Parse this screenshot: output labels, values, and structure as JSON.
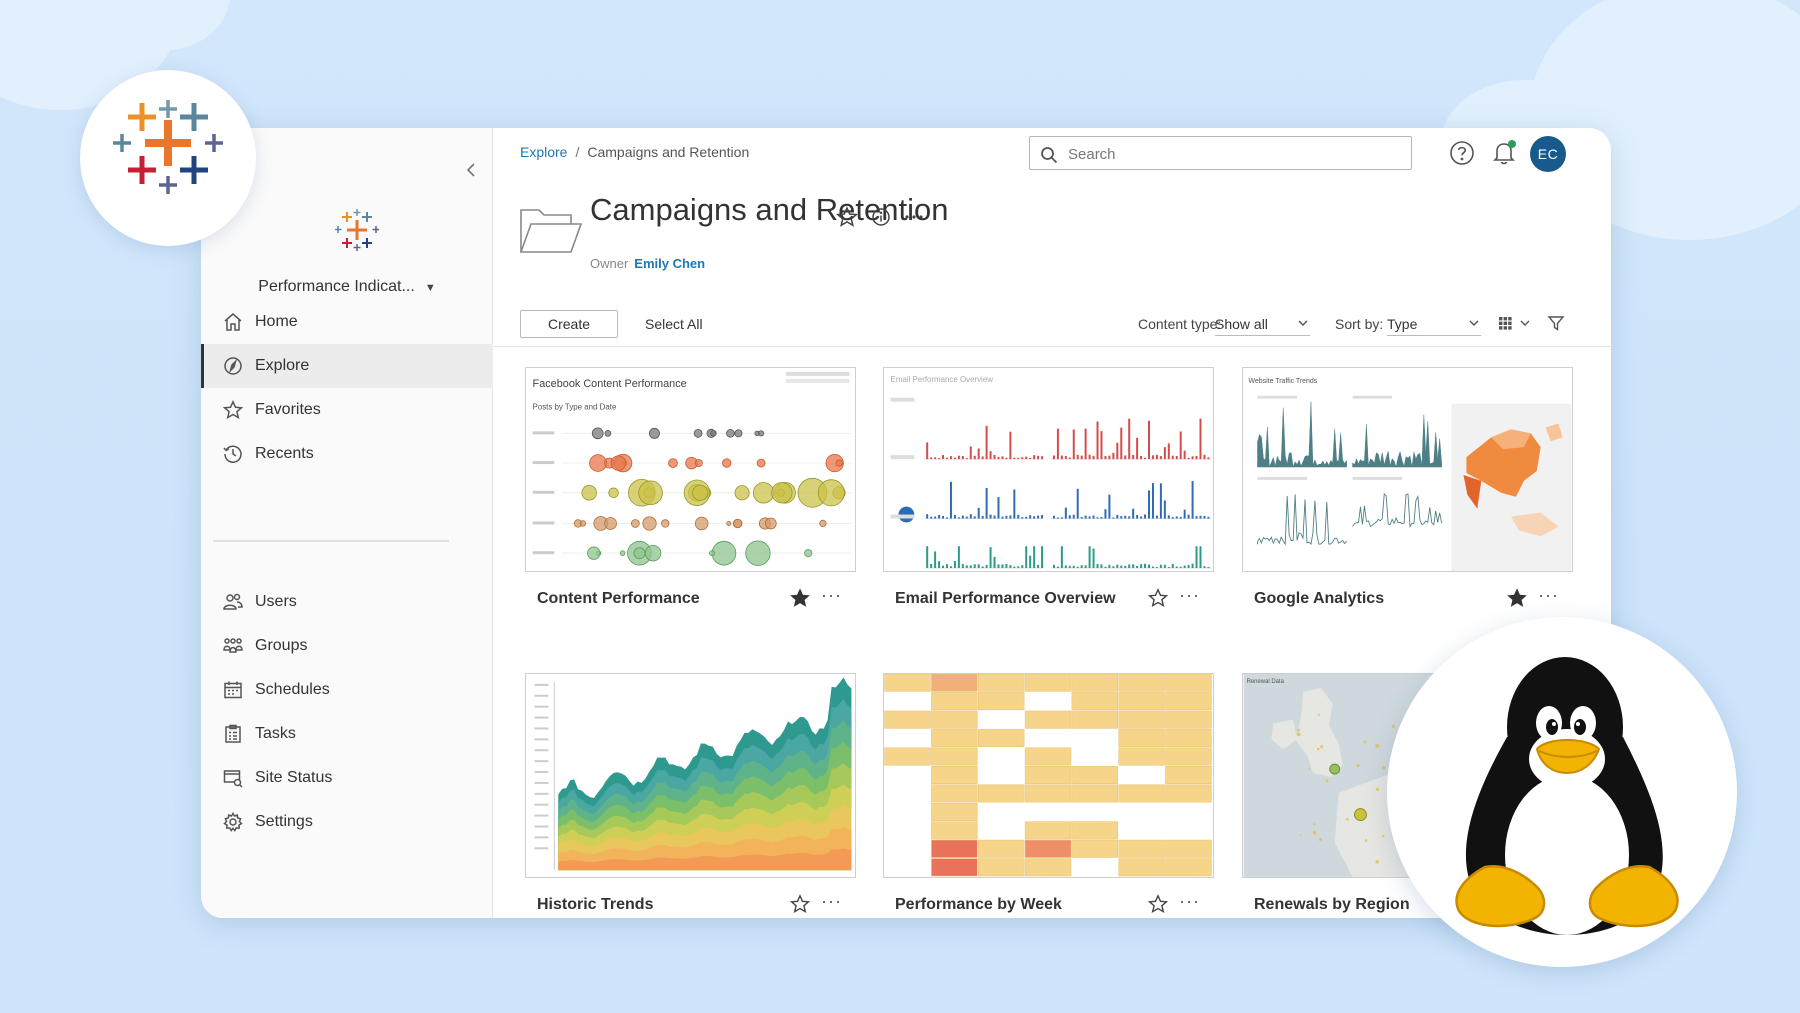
{
  "sidebar": {
    "site_name": "Performance Indicat...",
    "nav_primary": [
      {
        "label": "Home",
        "icon": "home-icon"
      },
      {
        "label": "Explore",
        "icon": "compass-icon",
        "active": true
      },
      {
        "label": "Favorites",
        "icon": "star-icon"
      },
      {
        "label": "Recents",
        "icon": "clock-icon"
      }
    ],
    "nav_admin": [
      {
        "label": "Users",
        "icon": "users-icon"
      },
      {
        "label": "Groups",
        "icon": "groups-icon"
      },
      {
        "label": "Schedules",
        "icon": "calendar-icon"
      },
      {
        "label": "Tasks",
        "icon": "tasks-icon"
      },
      {
        "label": "Site Status",
        "icon": "site-status-icon"
      },
      {
        "label": "Settings",
        "icon": "gear-icon"
      }
    ]
  },
  "header": {
    "breadcrumb": [
      "Explore",
      "Campaigns and Retention"
    ],
    "breadcrumb_separator": "/",
    "search_placeholder": "Search",
    "avatar_initials": "EC"
  },
  "project": {
    "title": "Campaigns and Retention",
    "owner_label": "Owner",
    "owner_name": "Emily Chen"
  },
  "toolbar": {
    "create_label": "Create",
    "select_all_label": "Select All",
    "content_type_label": "Content type:",
    "content_type_value": "Show all",
    "sort_by_label": "Sort by:",
    "sort_by_value": "Type"
  },
  "cards": [
    {
      "title": "Content Performance",
      "favorite": true,
      "thumb_title": "Facebook Content Performance",
      "thumb_subtitle": "Posts by Type and Date"
    },
    {
      "title": "Email Performance Overview",
      "favorite": false,
      "thumb_title": "Email Performance Overview"
    },
    {
      "title": "Google Analytics",
      "favorite": true,
      "thumb_title": "Website Traffic Trends"
    },
    {
      "title": "Historic Trends",
      "favorite": false
    },
    {
      "title": "Performance by Week",
      "favorite": false
    },
    {
      "title": "Renewals by Region",
      "favorite": false,
      "thumb_title": "Renewal Data"
    }
  ],
  "colors": {
    "accent_blue": "#1f77b4",
    "avatar_bg": "#185a8c",
    "favorite_star": "#333333"
  }
}
